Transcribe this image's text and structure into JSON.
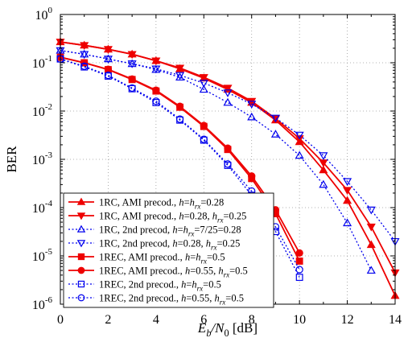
{
  "chart_data": {
    "type": "line",
    "ylabel": "BER",
    "xlabel_parts": [
      {
        "t": "E",
        "style": "italic"
      },
      {
        "t": "b",
        "style": "italic-sub"
      },
      {
        "t": "/",
        "style": "italic"
      },
      {
        "t": "N",
        "style": "italic"
      },
      {
        "t": "0",
        "style": "sub"
      },
      {
        "t": " [dB]",
        "style": "normal"
      }
    ],
    "xlim": [
      0,
      14
    ],
    "x_ticks": [
      0,
      2,
      4,
      6,
      8,
      10,
      12,
      14
    ],
    "y_log": true,
    "y_ticks": [
      {
        "exp": -6,
        "base": "10",
        "sup": "-6"
      },
      {
        "exp": -5,
        "base": "10",
        "sup": "-5"
      },
      {
        "exp": -4,
        "base": "10",
        "sup": "-4"
      },
      {
        "exp": -3,
        "base": "10",
        "sup": "-3"
      },
      {
        "exp": -2,
        "base": "10",
        "sup": "-2"
      },
      {
        "exp": -1,
        "base": "10",
        "sup": "-1"
      },
      {
        "exp": 0,
        "base": "10",
        "sup": "0"
      }
    ],
    "grid": "dotted",
    "legend_position": "bottom-left",
    "series": [
      {
        "color": "#ee0000",
        "dash": "solid",
        "marker": "triangle-up",
        "filled": true,
        "label_parts": [
          {
            "t": "1RC, AMI precod., ",
            "style": "normal"
          },
          {
            "t": "h",
            "style": "italic"
          },
          {
            "t": "=",
            "style": "normal"
          },
          {
            "t": "h",
            "style": "italic"
          },
          {
            "t": "rx",
            "style": "italic-sub"
          },
          {
            "t": "=0.28",
            "style": "normal"
          }
        ],
        "x": [
          0,
          1,
          2,
          3,
          4,
          5,
          6,
          7,
          8,
          9,
          10,
          11,
          12,
          13,
          14
        ],
        "y": [
          0.27,
          0.23,
          0.19,
          0.15,
          0.11,
          0.075,
          0.048,
          0.028,
          0.015,
          0.0065,
          0.0023,
          0.0006,
          0.00014,
          1.7e-05,
          1.5e-06
        ]
      },
      {
        "color": "#ee0000",
        "dash": "solid",
        "marker": "triangle-down",
        "filled": true,
        "label_parts": [
          {
            "t": "1RC, AMI precod., ",
            "style": "normal"
          },
          {
            "t": "h",
            "style": "italic"
          },
          {
            "t": "=0.28, ",
            "style": "normal"
          },
          {
            "t": "h",
            "style": "italic"
          },
          {
            "t": "rx",
            "style": "italic-sub"
          },
          {
            "t": "=0.25",
            "style": "normal"
          }
        ],
        "x": [
          0,
          1,
          2,
          3,
          4,
          5,
          6,
          7,
          8,
          9,
          10,
          11,
          12,
          13,
          14
        ],
        "y": [
          0.27,
          0.23,
          0.19,
          0.15,
          0.11,
          0.078,
          0.05,
          0.03,
          0.016,
          0.007,
          0.0027,
          0.00085,
          0.00023,
          4e-05,
          4.5e-06
        ]
      },
      {
        "color": "#0000ee",
        "dash": "dotted",
        "marker": "triangle-up",
        "filled": false,
        "label_parts": [
          {
            "t": "1RC, 2nd precod, ",
            "style": "normal"
          },
          {
            "t": "h",
            "style": "italic"
          },
          {
            "t": "=",
            "style": "normal"
          },
          {
            "t": "h",
            "style": "italic"
          },
          {
            "t": "rx",
            "style": "italic-sub"
          },
          {
            "t": "=7/25=0.28",
            "style": "normal"
          }
        ],
        "x": [
          0,
          1,
          2,
          3,
          4,
          5,
          6,
          7,
          8,
          9,
          10,
          11,
          12,
          13
        ],
        "y": [
          0.18,
          0.15,
          0.12,
          0.095,
          0.072,
          0.05,
          0.028,
          0.015,
          0.0075,
          0.0033,
          0.0012,
          0.0003,
          4.8e-05,
          5e-06
        ]
      },
      {
        "color": "#0000ee",
        "dash": "dotted",
        "marker": "triangle-down",
        "filled": false,
        "label_parts": [
          {
            "t": "1RC, 2nd precod, ",
            "style": "normal"
          },
          {
            "t": "h",
            "style": "italic"
          },
          {
            "t": "=0.28, ",
            "style": "normal"
          },
          {
            "t": "h",
            "style": "italic"
          },
          {
            "t": "rx",
            "style": "italic-sub"
          },
          {
            "t": "=0.25",
            "style": "normal"
          }
        ],
        "x": [
          0,
          1,
          2,
          3,
          4,
          5,
          6,
          7,
          8,
          9,
          10,
          11,
          12,
          13,
          14
        ],
        "y": [
          0.18,
          0.15,
          0.12,
          0.096,
          0.075,
          0.055,
          0.038,
          0.024,
          0.014,
          0.0072,
          0.0032,
          0.0012,
          0.00035,
          9e-05,
          2e-05
        ]
      },
      {
        "color": "#ee0000",
        "dash": "solid",
        "marker": "square",
        "filled": true,
        "label_parts": [
          {
            "t": "1REC, AMI precod., ",
            "style": "normal"
          },
          {
            "t": "h",
            "style": "italic"
          },
          {
            "t": "=",
            "style": "normal"
          },
          {
            "t": "h",
            "style": "italic"
          },
          {
            "t": "rx",
            "style": "italic-sub"
          },
          {
            "t": "=0.5",
            "style": "normal"
          }
        ],
        "x": [
          0,
          1,
          2,
          3,
          4,
          5,
          6,
          7,
          8,
          9,
          10
        ],
        "y": [
          0.13,
          0.1,
          0.072,
          0.045,
          0.026,
          0.012,
          0.0048,
          0.0016,
          0.0004,
          7.5e-05,
          7.8e-06
        ]
      },
      {
        "color": "#ee0000",
        "dash": "solid",
        "marker": "circle",
        "filled": true,
        "label_parts": [
          {
            "t": "1REC, AMI precod., ",
            "style": "normal"
          },
          {
            "t": "h",
            "style": "italic"
          },
          {
            "t": "=0.55, ",
            "style": "normal"
          },
          {
            "t": "h",
            "style": "italic"
          },
          {
            "t": "rx",
            "style": "italic-sub"
          },
          {
            "t": "=0.5",
            "style": "normal"
          }
        ],
        "x": [
          0,
          1,
          2,
          3,
          4,
          5,
          6,
          7,
          8,
          9,
          10
        ],
        "y": [
          0.13,
          0.1,
          0.073,
          0.046,
          0.027,
          0.0125,
          0.005,
          0.0017,
          0.00045,
          9e-05,
          1.15e-05
        ]
      },
      {
        "color": "#0000ee",
        "dash": "dotted",
        "marker": "square",
        "filled": false,
        "label_parts": [
          {
            "t": "1REC, 2nd precod., ",
            "style": "normal"
          },
          {
            "t": "h",
            "style": "italic"
          },
          {
            "t": "=",
            "style": "normal"
          },
          {
            "t": "h",
            "style": "italic"
          },
          {
            "t": "rx",
            "style": "italic-sub"
          },
          {
            "t": "=0.5",
            "style": "normal"
          }
        ],
        "x": [
          0,
          1,
          2,
          3,
          4,
          5,
          6,
          7,
          8,
          9,
          10
        ],
        "y": [
          0.12,
          0.082,
          0.053,
          0.029,
          0.015,
          0.0065,
          0.0025,
          0.00075,
          0.00018,
          3.2e-05,
          3.6e-06
        ]
      },
      {
        "color": "#0000ee",
        "dash": "dotted",
        "marker": "circle",
        "filled": false,
        "label_parts": [
          {
            "t": "1REC, 2nd precod., ",
            "style": "normal"
          },
          {
            "t": "h",
            "style": "italic"
          },
          {
            "t": "=0.55, ",
            "style": "normal"
          },
          {
            "t": "h",
            "style": "italic"
          },
          {
            "t": "rx",
            "style": "italic-sub"
          },
          {
            "t": "=0.5",
            "style": "normal"
          }
        ],
        "x": [
          0,
          1,
          2,
          3,
          4,
          5,
          6,
          7,
          8,
          9,
          10
        ],
        "y": [
          0.12,
          0.085,
          0.055,
          0.03,
          0.016,
          0.0068,
          0.0026,
          0.0008,
          0.00022,
          4e-05,
          5.2e-06
        ]
      }
    ]
  }
}
